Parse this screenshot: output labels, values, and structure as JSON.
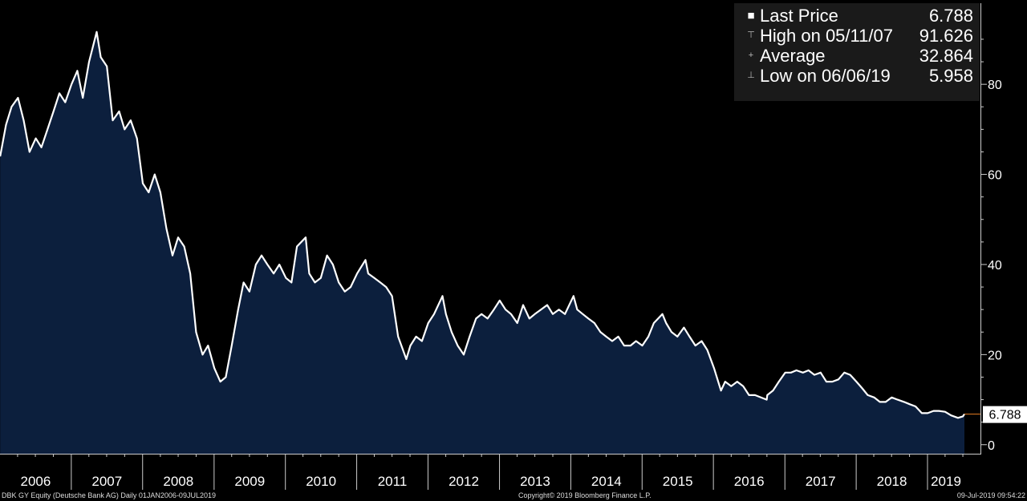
{
  "chart_data": {
    "type": "area",
    "ylim": [
      -2,
      98
    ],
    "yticks": [
      0,
      20,
      40,
      60,
      80
    ],
    "xlim": [
      "2006-01-01",
      "2019-07-09"
    ],
    "x_tick_labels": [
      "2006",
      "2007",
      "2008",
      "2009",
      "2010",
      "2011",
      "2012",
      "2013",
      "2014",
      "2015",
      "2016",
      "2017",
      "2018",
      "2019"
    ],
    "grid": false,
    "last_price_label": "6.788",
    "points": [
      [
        "2006-01-02",
        64
      ],
      [
        "2006-02-01",
        71
      ],
      [
        "2006-03-01",
        75
      ],
      [
        "2006-04-03",
        77
      ],
      [
        "2006-05-02",
        72
      ],
      [
        "2006-06-01",
        65
      ],
      [
        "2006-07-03",
        68
      ],
      [
        "2006-08-01",
        66
      ],
      [
        "2006-09-01",
        70
      ],
      [
        "2006-10-02",
        74
      ],
      [
        "2006-11-01",
        78
      ],
      [
        "2006-12-01",
        76
      ],
      [
        "2007-01-02",
        80
      ],
      [
        "2007-02-01",
        83
      ],
      [
        "2007-03-01",
        77
      ],
      [
        "2007-04-02",
        85
      ],
      [
        "2007-05-11",
        91.626
      ],
      [
        "2007-06-01",
        86
      ],
      [
        "2007-07-02",
        84
      ],
      [
        "2007-08-01",
        72
      ],
      [
        "2007-09-03",
        74
      ],
      [
        "2007-10-01",
        70
      ],
      [
        "2007-11-01",
        72
      ],
      [
        "2007-12-03",
        68
      ],
      [
        "2008-01-02",
        58
      ],
      [
        "2008-02-01",
        56
      ],
      [
        "2008-03-03",
        60
      ],
      [
        "2008-04-01",
        56
      ],
      [
        "2008-05-02",
        48
      ],
      [
        "2008-06-02",
        42
      ],
      [
        "2008-07-01",
        46
      ],
      [
        "2008-08-01",
        44
      ],
      [
        "2008-09-01",
        38
      ],
      [
        "2008-10-01",
        25
      ],
      [
        "2008-11-03",
        20
      ],
      [
        "2008-12-01",
        22
      ],
      [
        "2009-01-02",
        17
      ],
      [
        "2009-02-02",
        14
      ],
      [
        "2009-03-02",
        15
      ],
      [
        "2009-04-01",
        22
      ],
      [
        "2009-05-04",
        30
      ],
      [
        "2009-06-01",
        36
      ],
      [
        "2009-07-01",
        34
      ],
      [
        "2009-08-03",
        40
      ],
      [
        "2009-09-01",
        42
      ],
      [
        "2009-10-01",
        40
      ],
      [
        "2009-11-02",
        38
      ],
      [
        "2009-12-01",
        40
      ],
      [
        "2010-01-04",
        37
      ],
      [
        "2010-02-01",
        36
      ],
      [
        "2010-03-01",
        44
      ],
      [
        "2010-04-15",
        46
      ],
      [
        "2010-05-03",
        38
      ],
      [
        "2010-06-01",
        36
      ],
      [
        "2010-07-01",
        37
      ],
      [
        "2010-08-02",
        42
      ],
      [
        "2010-09-01",
        40
      ],
      [
        "2010-10-01",
        36
      ],
      [
        "2010-11-01",
        34
      ],
      [
        "2010-12-01",
        35
      ],
      [
        "2011-01-03",
        38
      ],
      [
        "2011-02-15",
        41
      ],
      [
        "2011-03-01",
        38
      ],
      [
        "2011-04-01",
        37
      ],
      [
        "2011-05-02",
        36
      ],
      [
        "2011-06-01",
        35
      ],
      [
        "2011-07-01",
        33
      ],
      [
        "2011-08-01",
        24
      ],
      [
        "2011-09-12",
        19
      ],
      [
        "2011-10-03",
        22
      ],
      [
        "2011-11-01",
        24
      ],
      [
        "2011-12-01",
        23
      ],
      [
        "2012-01-02",
        27
      ],
      [
        "2012-02-01",
        29
      ],
      [
        "2012-03-15",
        33
      ],
      [
        "2012-04-02",
        29
      ],
      [
        "2012-05-01",
        25
      ],
      [
        "2012-06-01",
        22
      ],
      [
        "2012-07-02",
        20
      ],
      [
        "2012-08-01",
        24
      ],
      [
        "2012-09-03",
        28
      ],
      [
        "2012-10-01",
        29
      ],
      [
        "2012-11-01",
        28
      ],
      [
        "2012-12-03",
        30
      ],
      [
        "2013-01-02",
        32
      ],
      [
        "2013-02-01",
        30
      ],
      [
        "2013-03-01",
        29
      ],
      [
        "2013-04-02",
        27
      ],
      [
        "2013-05-02",
        31
      ],
      [
        "2013-06-03",
        28
      ],
      [
        "2013-07-01",
        29
      ],
      [
        "2013-08-01",
        30
      ],
      [
        "2013-09-02",
        31
      ],
      [
        "2013-10-01",
        29
      ],
      [
        "2013-11-01",
        30
      ],
      [
        "2013-12-02",
        29
      ],
      [
        "2014-01-15",
        33
      ],
      [
        "2014-02-03",
        30
      ],
      [
        "2014-03-03",
        29
      ],
      [
        "2014-04-01",
        28
      ],
      [
        "2014-05-02",
        27
      ],
      [
        "2014-06-02",
        25
      ],
      [
        "2014-07-01",
        24
      ],
      [
        "2014-08-01",
        23
      ],
      [
        "2014-09-01",
        24
      ],
      [
        "2014-10-01",
        22
      ],
      [
        "2014-11-03",
        22
      ],
      [
        "2014-12-01",
        23
      ],
      [
        "2015-01-02",
        22
      ],
      [
        "2015-02-02",
        24
      ],
      [
        "2015-03-02",
        27
      ],
      [
        "2015-04-15",
        29
      ],
      [
        "2015-05-04",
        27
      ],
      [
        "2015-06-01",
        25
      ],
      [
        "2015-07-01",
        24
      ],
      [
        "2015-08-03",
        26
      ],
      [
        "2015-09-01",
        24
      ],
      [
        "2015-10-01",
        22
      ],
      [
        "2015-11-02",
        23
      ],
      [
        "2015-12-01",
        21
      ],
      [
        "2016-01-04",
        17
      ],
      [
        "2016-02-09",
        12
      ],
      [
        "2016-03-01",
        14
      ],
      [
        "2016-04-01",
        13
      ],
      [
        "2016-05-02",
        14
      ],
      [
        "2016-06-01",
        13
      ],
      [
        "2016-07-01",
        11
      ],
      [
        "2016-08-01",
        11
      ],
      [
        "2016-09-30",
        10
      ],
      [
        "2016-10-03",
        11
      ],
      [
        "2016-11-01",
        12
      ],
      [
        "2016-12-01",
        14
      ],
      [
        "2017-01-03",
        16
      ],
      [
        "2017-02-01",
        16
      ],
      [
        "2017-03-01",
        16.5
      ],
      [
        "2017-04-03",
        16
      ],
      [
        "2017-05-02",
        16.5
      ],
      [
        "2017-06-01",
        15.5
      ],
      [
        "2017-07-03",
        16
      ],
      [
        "2017-08-01",
        14
      ],
      [
        "2017-09-01",
        14
      ],
      [
        "2017-10-02",
        14.5
      ],
      [
        "2017-11-01",
        16
      ],
      [
        "2017-12-01",
        15.5
      ],
      [
        "2018-01-02",
        14
      ],
      [
        "2018-02-01",
        12.5
      ],
      [
        "2018-03-01",
        11
      ],
      [
        "2018-04-03",
        10.5
      ],
      [
        "2018-05-02",
        9.5
      ],
      [
        "2018-06-01",
        9.5
      ],
      [
        "2018-07-02",
        10.5
      ],
      [
        "2018-08-01",
        10
      ],
      [
        "2018-09-03",
        9.5
      ],
      [
        "2018-10-01",
        9
      ],
      [
        "2018-11-01",
        8.5
      ],
      [
        "2018-12-03",
        7
      ],
      [
        "2019-01-02",
        7
      ],
      [
        "2019-02-01",
        7.5
      ],
      [
        "2019-03-01",
        7.5
      ],
      [
        "2019-04-01",
        7.3
      ],
      [
        "2019-05-02",
        6.5
      ],
      [
        "2019-06-06",
        5.958
      ],
      [
        "2019-07-01",
        6.3
      ],
      [
        "2019-07-09",
        6.788
      ]
    ]
  },
  "legend": {
    "items": [
      {
        "label": "Last Price",
        "value": "6.788",
        "glyph": "■"
      },
      {
        "label": "High on 05/11/07",
        "value": "91.626",
        "glyph": "⊤"
      },
      {
        "label": "Average",
        "value": "32.864",
        "glyph": "+"
      },
      {
        "label": "Low on 06/06/19",
        "value": "5.958",
        "glyph": "⊥"
      }
    ]
  },
  "footer": {
    "left": "DBK GY Equity (Deutsche Bank AG)  Daily 01JAN2006-09JUL2019",
    "center": "Copyright© 2019 Bloomberg Finance L.P.",
    "right": "09-Jul-2019 09:54:22"
  },
  "colors": {
    "background": "#000000",
    "area_fill": "#0c1f3d",
    "line": "#ffffff",
    "last_price_marker": "#e67e22"
  }
}
